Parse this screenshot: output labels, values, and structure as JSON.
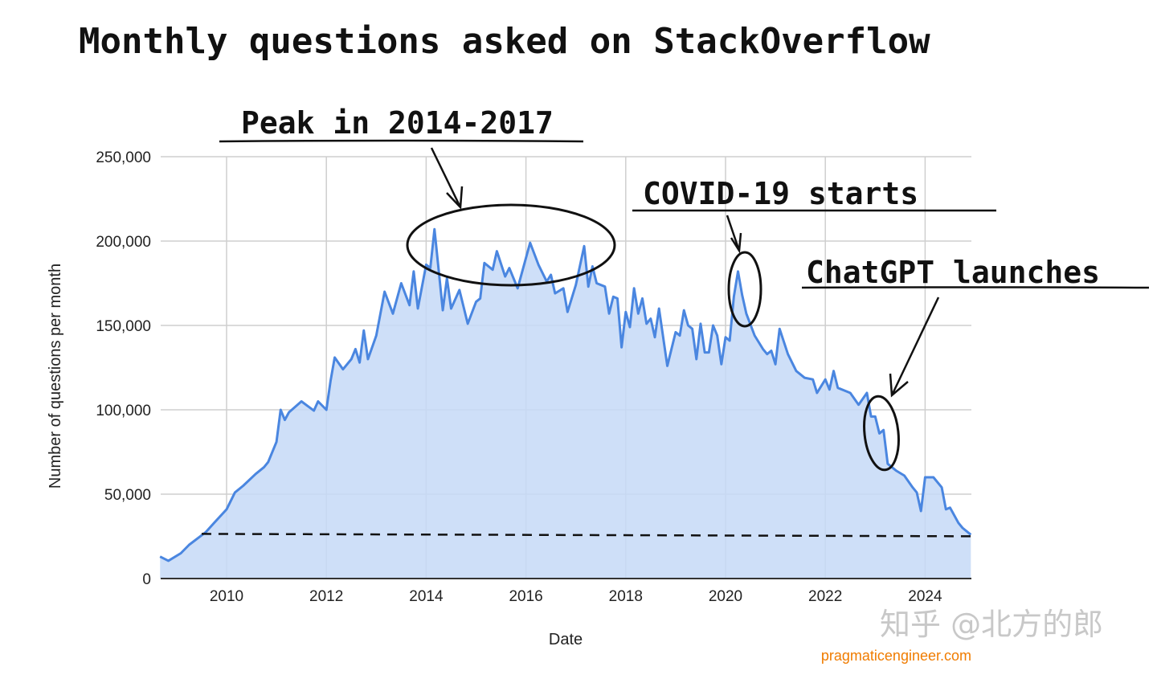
{
  "chart_data": {
    "type": "area",
    "title": "Monthly questions asked on StackOverflow",
    "xlabel": "Date",
    "ylabel": "Number of questions per month",
    "ylim": [
      0,
      250000
    ],
    "yticks": [
      "0",
      "50,000",
      "100,000",
      "150,000",
      "200,000",
      "250,000"
    ],
    "ytick_values": [
      0,
      50000,
      100000,
      150000,
      200000,
      250000
    ],
    "xticks": [
      "2010",
      "2012",
      "2014",
      "2016",
      "2018",
      "2020",
      "2022",
      "2024"
    ],
    "xlim": [
      "2008-09",
      "2024-12"
    ],
    "grid": true,
    "line_color": "#4a86e0",
    "fill_color": "#c6d9f7",
    "reference_line": {
      "style": "dashed",
      "value": 26000,
      "from": "2009-07",
      "to": "2024-12",
      "color": "#111111"
    },
    "series": [
      {
        "points": [
          [
            "2008-09",
            13000
          ],
          [
            "2008-11",
            10500
          ],
          [
            "2009-02",
            15000
          ],
          [
            "2009-04",
            20000
          ],
          [
            "2009-08",
            27500
          ],
          [
            "2009-10",
            33000
          ],
          [
            "2010-01",
            41000
          ],
          [
            "2010-03",
            51000
          ],
          [
            "2010-05",
            55000
          ],
          [
            "2010-08",
            62000
          ],
          [
            "2010-10",
            66000
          ],
          [
            "2010-11",
            69000
          ],
          [
            "2011-01",
            81000
          ],
          [
            "2011-02",
            100000
          ],
          [
            "2011-03",
            94000
          ],
          [
            "2011-04",
            98500
          ],
          [
            "2011-07",
            105000
          ],
          [
            "2011-10",
            99500
          ],
          [
            "2011-11",
            105000
          ],
          [
            "2012-01",
            100000
          ],
          [
            "2012-02",
            117000
          ],
          [
            "2012-03",
            131000
          ],
          [
            "2012-05",
            124000
          ],
          [
            "2012-07",
            130000
          ],
          [
            "2012-08",
            136000
          ],
          [
            "2012-09",
            128000
          ],
          [
            "2012-10",
            147000
          ],
          [
            "2012-11",
            130000
          ],
          [
            "2013-01",
            144000
          ],
          [
            "2013-03",
            170000
          ],
          [
            "2013-05",
            157000
          ],
          [
            "2013-07",
            175000
          ],
          [
            "2013-09",
            162000
          ],
          [
            "2013-10",
            182000
          ],
          [
            "2013-11",
            160000
          ],
          [
            "2014-01",
            186000
          ],
          [
            "2014-02",
            184000
          ],
          [
            "2014-03",
            207000
          ],
          [
            "2014-05",
            159000
          ],
          [
            "2014-06",
            178000
          ],
          [
            "2014-07",
            160000
          ],
          [
            "2014-09",
            171000
          ],
          [
            "2014-11",
            151000
          ],
          [
            "2015-01",
            164000
          ],
          [
            "2015-02",
            166000
          ],
          [
            "2015-03",
            187000
          ],
          [
            "2015-05",
            183000
          ],
          [
            "2015-06",
            194000
          ],
          [
            "2015-08",
            179000
          ],
          [
            "2015-09",
            184000
          ],
          [
            "2015-11",
            172000
          ],
          [
            "2016-02",
            199000
          ],
          [
            "2016-04",
            186000
          ],
          [
            "2016-06",
            176000
          ],
          [
            "2016-07",
            180000
          ],
          [
            "2016-08",
            169000
          ],
          [
            "2016-10",
            172000
          ],
          [
            "2016-11",
            158000
          ],
          [
            "2017-01",
            174000
          ],
          [
            "2017-03",
            197000
          ],
          [
            "2017-04",
            173000
          ],
          [
            "2017-05",
            185000
          ],
          [
            "2017-06",
            175000
          ],
          [
            "2017-08",
            173000
          ],
          [
            "2017-09",
            157000
          ],
          [
            "2017-10",
            167000
          ],
          [
            "2017-11",
            166000
          ],
          [
            "2017-12",
            137000
          ],
          [
            "2018-01",
            158000
          ],
          [
            "2018-02",
            149000
          ],
          [
            "2018-03",
            172000
          ],
          [
            "2018-04",
            157000
          ],
          [
            "2018-05",
            166000
          ],
          [
            "2018-06",
            151000
          ],
          [
            "2018-07",
            154000
          ],
          [
            "2018-08",
            143000
          ],
          [
            "2018-09",
            160000
          ],
          [
            "2018-11",
            126000
          ],
          [
            "2019-01",
            146000
          ],
          [
            "2019-02",
            144000
          ],
          [
            "2019-03",
            159000
          ],
          [
            "2019-04",
            150000
          ],
          [
            "2019-05",
            148000
          ],
          [
            "2019-06",
            130000
          ],
          [
            "2019-07",
            151000
          ],
          [
            "2019-08",
            134000
          ],
          [
            "2019-09",
            134000
          ],
          [
            "2019-10",
            150000
          ],
          [
            "2019-11",
            144000
          ],
          [
            "2019-12",
            127000
          ],
          [
            "2020-01",
            143000
          ],
          [
            "2020-02",
            141000
          ],
          [
            "2020-03",
            167000
          ],
          [
            "2020-04",
            182000
          ],
          [
            "2020-05",
            168000
          ],
          [
            "2020-06",
            157000
          ],
          [
            "2020-08",
            144000
          ],
          [
            "2020-10",
            136000
          ],
          [
            "2020-11",
            133000
          ],
          [
            "2020-12",
            135000
          ],
          [
            "2021-01",
            127000
          ],
          [
            "2021-02",
            148000
          ],
          [
            "2021-04",
            133000
          ],
          [
            "2021-06",
            123000
          ],
          [
            "2021-08",
            119000
          ],
          [
            "2021-10",
            118000
          ],
          [
            "2021-11",
            110000
          ],
          [
            "2022-01",
            118000
          ],
          [
            "2022-02",
            112000
          ],
          [
            "2022-03",
            123000
          ],
          [
            "2022-04",
            113000
          ],
          [
            "2022-06",
            111000
          ],
          [
            "2022-07",
            110000
          ],
          [
            "2022-09",
            103000
          ],
          [
            "2022-11",
            110000
          ],
          [
            "2022-12",
            96000
          ],
          [
            "2023-01",
            96000
          ],
          [
            "2023-02",
            86000
          ],
          [
            "2023-03",
            88000
          ],
          [
            "2023-04",
            68000
          ],
          [
            "2023-06",
            64000
          ],
          [
            "2023-08",
            61000
          ],
          [
            "2023-10",
            54000
          ],
          [
            "2023-11",
            51000
          ],
          [
            "2023-12",
            40000
          ],
          [
            "2024-01",
            60000
          ],
          [
            "2024-03",
            60000
          ],
          [
            "2024-05",
            54000
          ],
          [
            "2024-06",
            41000
          ],
          [
            "2024-07",
            42000
          ],
          [
            "2024-09",
            33000
          ],
          [
            "2024-10",
            30000
          ],
          [
            "2024-12",
            26000
          ]
        ]
      }
    ],
    "annotations": [
      {
        "text": "Peak in 2014-2017",
        "target": "2014-2017"
      },
      {
        "text": "COVID-19 starts",
        "target": "2020-04"
      },
      {
        "text": "ChatGPT launches",
        "target": "2023-03"
      }
    ]
  },
  "source": "pragmaticengineer.com",
  "source_color": "#f07c00",
  "watermark": "知乎 @北方的郎"
}
